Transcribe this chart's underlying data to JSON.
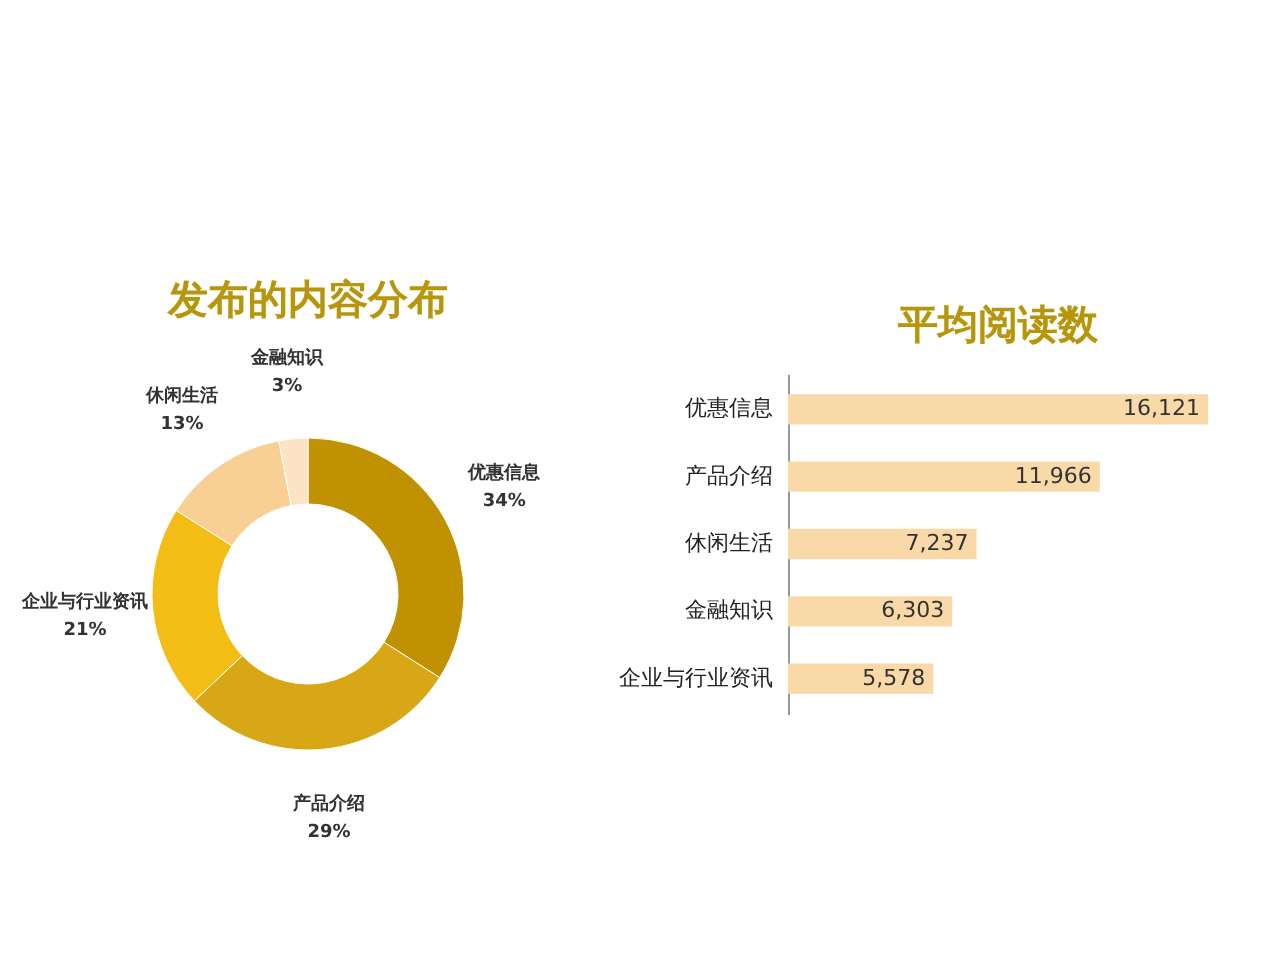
{
  "chart_data": [
    {
      "type": "donut",
      "title": "发布的内容分布",
      "categories": [
        "优惠信息",
        "产品介绍",
        "企业与行业资讯",
        "休闲生活",
        "金融知识"
      ],
      "values": [
        34,
        29,
        21,
        13,
        3
      ],
      "value_labels": [
        "34%",
        "29%",
        "21%",
        "13%",
        "3%"
      ],
      "colors": [
        "#c09100",
        "#d8a716",
        "#f4bd16",
        "#f8cf94",
        "#fbe3c4"
      ],
      "legend": false
    },
    {
      "type": "bar",
      "orientation": "horizontal",
      "title": "平均阅读数",
      "categories": [
        "优惠信息",
        "产品介绍",
        "休闲生活",
        "金融知识",
        "企业与行业资讯"
      ],
      "values": [
        16121,
        11966,
        7237,
        6303,
        5578
      ],
      "value_labels": [
        "16,121",
        "11,966",
        "7,237",
        "6,303",
        "5,578"
      ],
      "color": "#f9d9a8"
    }
  ]
}
